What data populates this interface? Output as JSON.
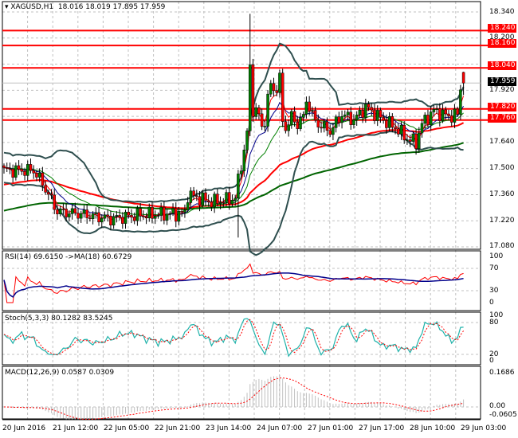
{
  "header": {
    "symbol": "XAGUSD,H1",
    "ohlc": "18.016 18.019 17.895 17.959"
  },
  "price_axis": [
    "18.340",
    "18.200",
    "17.920",
    "17.640",
    "17.500",
    "17.360",
    "17.220",
    "17.080"
  ],
  "levels": [
    {
      "label": "18.240",
      "value": 18.24
    },
    {
      "label": "18.160",
      "value": 18.16
    },
    {
      "label": "18.040",
      "value": 18.04
    },
    {
      "label": "17.820",
      "value": 17.82
    },
    {
      "label": "17.760",
      "value": 17.76
    }
  ],
  "current_price": {
    "label": "17.959",
    "value": 17.959
  },
  "time_axis": [
    "20 Jun 2016",
    "21 Jun 12:00",
    "22 Jun 05:00",
    "22 Jun 21:00",
    "23 Jun 14:00",
    "24 Jun 07:00",
    "27 Jun 01:00",
    "27 Jun 17:00",
    "28 Jun 10:00",
    "29 Jun 03:00"
  ],
  "rsi": {
    "label": "RSI(14) 69.6150  ->MA(18) 60.6729",
    "ticks": [
      "100",
      "70",
      "30",
      "0"
    ]
  },
  "stoch": {
    "label": "Stoch(5,3,3) 80.1282 83.5245",
    "ticks": [
      "100",
      "80",
      "20",
      "0"
    ]
  },
  "macd": {
    "label": "MACD(12,26,9) 0.0587 0.0309",
    "ticks": [
      "0.1686",
      "0.00",
      "-0.0605"
    ]
  },
  "colors": {
    "level": "#ff0000",
    "bull": "#008000",
    "bear": "#ff0000",
    "bands": "#2f4f4f",
    "ma_slow": "#006400",
    "ma_mid": "#ff0000",
    "rsi": "#ff0000",
    "rsi_ma": "#00008b",
    "stoch_main": "#20b2aa",
    "stoch_signal": "#ff0000",
    "macd_hist": "#c0c0c0"
  },
  "chart_data": {
    "type": "candlestick",
    "symbol": "XAGUSD",
    "timeframe": "H1",
    "bars": 156,
    "ylim": [
      17.08,
      18.34
    ],
    "grid": true,
    "price_path": [
      [
        0,
        17.49
      ],
      [
        10,
        17.49
      ],
      [
        13,
        17.42
      ],
      [
        18,
        17.27
      ],
      [
        24,
        17.26
      ],
      [
        36,
        17.23
      ],
      [
        45,
        17.25
      ],
      [
        61,
        17.26
      ],
      [
        62,
        17.36
      ],
      [
        70,
        17.32
      ],
      [
        78,
        17.34
      ],
      [
        79,
        17.44
      ],
      [
        82,
        17.68
      ],
      [
        83,
        18.02
      ],
      [
        84,
        17.85
      ],
      [
        87,
        17.72
      ],
      [
        90,
        17.93
      ],
      [
        93,
        17.96
      ],
      [
        94,
        17.74
      ],
      [
        101,
        17.77
      ],
      [
        102,
        17.87
      ],
      [
        105,
        17.75
      ],
      [
        110,
        17.7
      ],
      [
        114,
        17.79
      ],
      [
        118,
        17.76
      ],
      [
        122,
        17.83
      ],
      [
        128,
        17.76
      ],
      [
        132,
        17.72
      ],
      [
        136,
        17.66
      ],
      [
        139,
        17.64
      ],
      [
        141,
        17.74
      ],
      [
        145,
        17.81
      ],
      [
        150,
        17.78
      ],
      [
        153,
        17.79
      ],
      [
        154,
        17.93
      ],
      [
        155,
        17.959
      ]
    ],
    "spike_high": 18.33,
    "spike_low": 17.13,
    "last_bar": {
      "open": 18.016,
      "high": 18.019,
      "low": 17.895,
      "close": 17.959
    }
  }
}
